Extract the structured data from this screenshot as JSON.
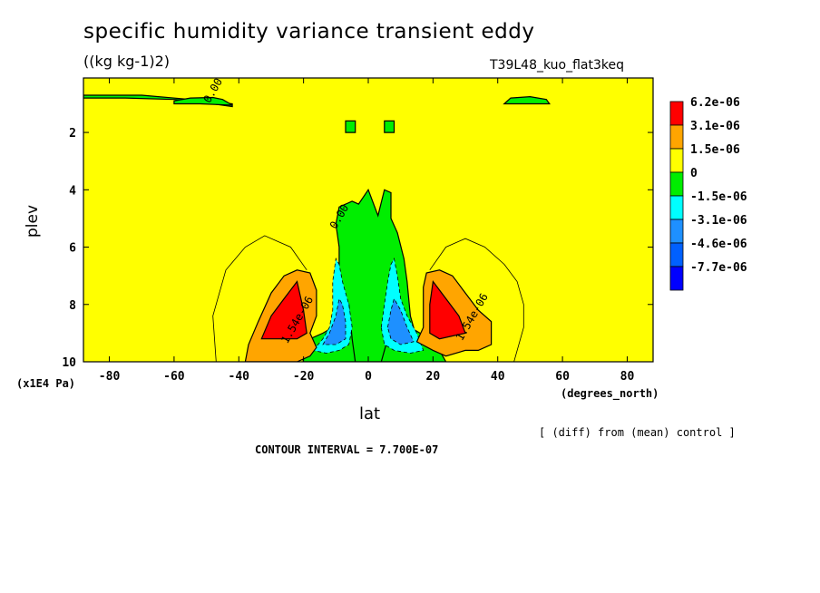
{
  "chart_data": {
    "type": "contour",
    "title": "specific humidity variance transient eddy",
    "units": "((kg kg-1)2)",
    "run_label": "T39L48_kuo_flat3keq",
    "xlabel": "lat",
    "x_unit": "(degrees_north)",
    "ylabel": "plev",
    "y_unit": "(x1E4 Pa)",
    "xlim": [
      -88,
      88
    ],
    "ylim": [
      10,
      0.1
    ],
    "x_ticks": [
      {
        "value": -80,
        "label": "-80"
      },
      {
        "value": -60,
        "label": "-60"
      },
      {
        "value": -40,
        "label": "-40"
      },
      {
        "value": -20,
        "label": "-20"
      },
      {
        "value": 0,
        "label": "0"
      },
      {
        "value": 20,
        "label": "20"
      },
      {
        "value": 40,
        "label": "40"
      },
      {
        "value": 60,
        "label": "60"
      },
      {
        "value": 80,
        "label": "80"
      }
    ],
    "y_ticks": [
      {
        "value": 2,
        "label": "2"
      },
      {
        "value": 4,
        "label": "4"
      },
      {
        "value": 6,
        "label": "6"
      },
      {
        "value": 8,
        "label": "8"
      },
      {
        "value": 10,
        "label": "10"
      }
    ],
    "legend": {
      "placement": "right",
      "entries": [
        {
          "label": "6.2e-06",
          "color": "#ff0000"
        },
        {
          "label": "3.1e-06",
          "color": "#ffa500"
        },
        {
          "label": "1.5e-06",
          "color": "#ffff00"
        },
        {
          "label": "0",
          "color": "#00ee00"
        },
        {
          "label": "-1.5e-06",
          "color": "#00ffff"
        },
        {
          "label": "-3.1e-06",
          "color": "#1e90ff"
        },
        {
          "label": "-4.6e-06",
          "color": "#0060ff"
        },
        {
          "label": "-7.7e-06",
          "color": "#0000ff"
        }
      ]
    },
    "contour_labels": [
      {
        "text": "0.00",
        "x": -47,
        "y": 0.6
      },
      {
        "text": "0.00",
        "x": -8,
        "y": 5.0
      },
      {
        "text": "1.54e-06",
        "x": -21,
        "y": 8.6
      },
      {
        "text": "1.54e-06",
        "x": 33,
        "y": 8.5
      }
    ],
    "regions": {
      "background": "#ffff00",
      "green": [
        [
          [
            -5,
            10
          ],
          [
            -6,
            8.8
          ],
          [
            -9,
            7.2
          ],
          [
            -9,
            6.0
          ],
          [
            -10,
            5.2
          ],
          [
            -9,
            4.6
          ],
          [
            -5,
            4.4
          ],
          [
            -3,
            4.5
          ],
          [
            0,
            4.0
          ],
          [
            3,
            4.9
          ],
          [
            5,
            4.0
          ],
          [
            7,
            4.1
          ],
          [
            7,
            5.0
          ],
          [
            9,
            5.5
          ],
          [
            11,
            6.4
          ],
          [
            12,
            7.2
          ],
          [
            13,
            8.4
          ],
          [
            15,
            9.2
          ],
          [
            11,
            10
          ]
        ],
        [
          [
            -20,
            10
          ],
          [
            -21,
            9.6
          ],
          [
            -18,
            9.2
          ],
          [
            -14,
            9.0
          ],
          [
            -11,
            8.8
          ],
          [
            -8,
            8.4
          ],
          [
            -6,
            8.0
          ],
          [
            -5,
            9.2
          ],
          [
            -4,
            10
          ]
        ],
        [
          [
            4,
            10
          ],
          [
            6,
            9.2
          ],
          [
            7,
            8.0
          ],
          [
            10,
            8.4
          ],
          [
            13,
            8.8
          ],
          [
            19,
            9.2
          ],
          [
            22,
            9.6
          ],
          [
            24,
            10
          ]
        ],
        [
          [
            -88,
            0.8
          ],
          [
            -75,
            0.8
          ],
          [
            -60,
            0.85
          ],
          [
            -55,
            0.9
          ],
          [
            -48,
            1.0
          ],
          [
            -42,
            1.1
          ],
          [
            -42,
            1.0
          ],
          [
            -55,
            0.85
          ],
          [
            -70,
            0.7
          ],
          [
            -88,
            0.7
          ]
        ],
        [
          [
            -60,
            0.9
          ],
          [
            -55,
            0.8
          ],
          [
            -48,
            0.78
          ],
          [
            -45,
            0.85
          ],
          [
            -42,
            1.05
          ],
          [
            -52,
            1.0
          ],
          [
            -60,
            1.0
          ]
        ],
        [
          [
            42,
            1.0
          ],
          [
            44,
            0.8
          ],
          [
            50,
            0.75
          ],
          [
            55,
            0.85
          ],
          [
            56,
            1.0
          ]
        ],
        [
          [
            -7,
            1.6
          ],
          [
            -4,
            1.6
          ],
          [
            -4,
            2.0
          ],
          [
            -7,
            2.0
          ]
        ],
        [
          [
            5,
            1.6
          ],
          [
            8,
            1.6
          ],
          [
            8,
            2.0
          ],
          [
            5,
            2.0
          ]
        ]
      ],
      "cyan": [
        [
          [
            -17,
            9.6
          ],
          [
            -14,
            9.2
          ],
          [
            -12,
            8.8
          ],
          [
            -11,
            8.2
          ],
          [
            -11,
            7.2
          ],
          [
            -10,
            6.4
          ],
          [
            -9,
            6.6
          ],
          [
            -8,
            7.2
          ],
          [
            -6,
            8.0
          ],
          [
            -5,
            8.8
          ],
          [
            -6,
            9.4
          ],
          [
            -9,
            9.6
          ],
          [
            -13,
            9.7
          ]
        ],
        [
          [
            4,
            8.8
          ],
          [
            5,
            8.0
          ],
          [
            6,
            7.2
          ],
          [
            7,
            6.6
          ],
          [
            8,
            6.4
          ],
          [
            9,
            7.0
          ],
          [
            10,
            7.8
          ],
          [
            12,
            8.4
          ],
          [
            15,
            9.0
          ],
          [
            17,
            9.6
          ],
          [
            13,
            9.7
          ],
          [
            8,
            9.6
          ],
          [
            5,
            9.4
          ]
        ]
      ],
      "blue": [
        [
          [
            -14,
            9.4
          ],
          [
            -12,
            9.0
          ],
          [
            -10,
            8.4
          ],
          [
            -9,
            7.8
          ],
          [
            -8,
            8.0
          ],
          [
            -7,
            8.6
          ],
          [
            -7,
            9.2
          ],
          [
            -10,
            9.4
          ]
        ],
        [
          [
            6,
            8.8
          ],
          [
            7,
            8.2
          ],
          [
            8,
            7.8
          ],
          [
            10,
            8.2
          ],
          [
            12,
            8.8
          ],
          [
            14,
            9.3
          ],
          [
            10,
            9.4
          ],
          [
            7,
            9.2
          ]
        ]
      ],
      "orange": [
        [
          [
            -38,
            10
          ],
          [
            -37,
            9.4
          ],
          [
            -34,
            8.6
          ],
          [
            -30,
            7.6
          ],
          [
            -26,
            7.0
          ],
          [
            -22,
            6.8
          ],
          [
            -18,
            6.9
          ],
          [
            -16,
            7.5
          ],
          [
            -16,
            8.4
          ],
          [
            -18,
            9.0
          ],
          [
            -16,
            9.5
          ],
          [
            -18,
            9.8
          ],
          [
            -22,
            10
          ]
        ],
        [
          [
            15,
            9.3
          ],
          [
            17,
            8.8
          ],
          [
            17,
            7.4
          ],
          [
            18,
            6.9
          ],
          [
            22,
            6.8
          ],
          [
            26,
            7.0
          ],
          [
            30,
            7.6
          ],
          [
            34,
            8.2
          ],
          [
            38,
            8.6
          ],
          [
            38,
            9.4
          ],
          [
            34,
            9.6
          ],
          [
            30,
            9.6
          ],
          [
            24,
            9.8
          ],
          [
            20,
            9.6
          ]
        ]
      ],
      "red": [
        [
          [
            -33,
            9.2
          ],
          [
            -30,
            8.4
          ],
          [
            -26,
            7.8
          ],
          [
            -22,
            7.2
          ],
          [
            -20,
            8.2
          ],
          [
            -19,
            9.0
          ],
          [
            -22,
            9.2
          ],
          [
            -28,
            9.2
          ]
        ],
        [
          [
            19,
            9.0
          ],
          [
            19,
            8.0
          ],
          [
            20,
            7.2
          ],
          [
            24,
            7.8
          ],
          [
            28,
            8.4
          ],
          [
            30,
            9.0
          ],
          [
            26,
            9.1
          ],
          [
            22,
            9.2
          ]
        ]
      ],
      "zero_lines": [
        [
          [
            -47,
            10
          ],
          [
            -48,
            8.4
          ],
          [
            -44,
            6.8
          ],
          [
            -38,
            6.0
          ],
          [
            -32,
            5.6
          ],
          [
            -28,
            5.8
          ],
          [
            -24,
            6.0
          ],
          [
            -19,
            6.8
          ]
        ],
        [
          [
            19,
            6.8
          ],
          [
            24,
            6.0
          ],
          [
            30,
            5.7
          ],
          [
            36,
            6.0
          ],
          [
            42,
            6.6
          ],
          [
            46,
            7.2
          ],
          [
            48,
            8.0
          ],
          [
            48,
            8.8
          ],
          [
            45,
            10
          ]
        ]
      ]
    }
  },
  "footer": {
    "diff_note": "[ (diff) from (mean) control ]",
    "contour_interval": "CONTOUR INTERVAL = 7.700E-07"
  }
}
